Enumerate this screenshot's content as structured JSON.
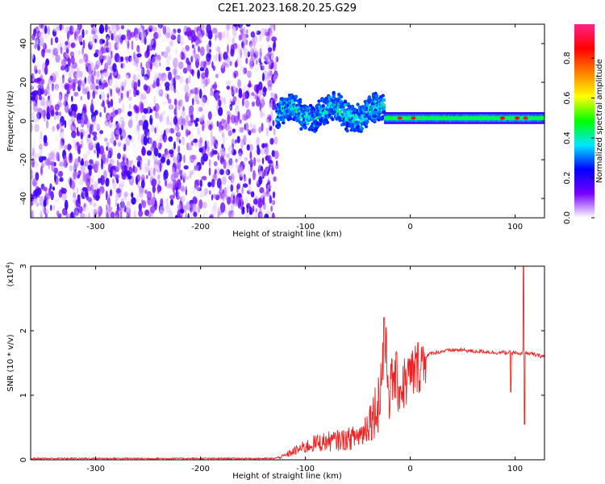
{
  "title": "C2E1.2023.168.20.25.G29",
  "chart_data": [
    {
      "type": "heatmap",
      "xlabel": "Height of straight line (km)",
      "ylabel": "Frequency (Hz)",
      "xlim": [
        -362,
        128
      ],
      "ylim": [
        -50,
        50
      ],
      "x_ticks": [
        -300,
        -200,
        -100,
        0,
        100
      ],
      "x_tick_labels": [
        "-300",
        "-200",
        "-100",
        "0",
        "100"
      ],
      "y_ticks": [
        -40,
        -20,
        0,
        20,
        40
      ],
      "y_tick_labels": [
        "-40",
        "-20",
        "0",
        "20",
        "40"
      ],
      "colorbar": {
        "label": "Normalized spectral amplitude",
        "range": [
          0,
          0.97
        ],
        "ticks": [
          0.0,
          0.2,
          0.4,
          0.6,
          0.8
        ],
        "tick_labels": [
          "0.0",
          "0.2",
          "0.4",
          "0.6",
          "0.8"
        ],
        "colors": [
          "#ffffff",
          "#7700ff",
          "#0000ff",
          "#00e5ff",
          "#00ff00",
          "#ffff00",
          "#ff7f00",
          "#ff0000",
          "#ff2288"
        ]
      },
      "regions": [
        {
          "description": "broadband low-amplitude noise",
          "x_range": [
            -362,
            -127
          ],
          "freq_range": [
            -50,
            50
          ],
          "amplitude": [
            0.0,
            0.2
          ]
        },
        {
          "description": "carrier band, noisy",
          "x_range": [
            -127,
            -25
          ],
          "freq_center": 4,
          "freq_halfwidth": 6,
          "amplitude": [
            0.25,
            0.45
          ]
        },
        {
          "description": "stable carrier",
          "x_range": [
            -25,
            128
          ],
          "freq_center": 1.5,
          "freq_halfwidth": 2.5,
          "amplitude": [
            0.4,
            0.97
          ]
        }
      ],
      "peaks": [
        {
          "x": -10,
          "freq": 1.5,
          "value": 0.9
        },
        {
          "x": 3,
          "freq": 1.5,
          "value": 0.9
        },
        {
          "x": 88,
          "freq": 1.5,
          "value": 0.85
        },
        {
          "x": 102,
          "freq": 1.5,
          "value": 0.85
        },
        {
          "x": 110,
          "freq": 1.5,
          "value": 0.9
        }
      ]
    },
    {
      "type": "line",
      "xlabel": "Height of straight line (km)",
      "ylabel": "SNR (10 * v/v)",
      "y_scale_label": "(x10",
      "y_scale_exponent": "4",
      "xlim": [
        -362,
        128
      ],
      "ylim": [
        0,
        3
      ],
      "x_ticks": [
        -300,
        -200,
        -100,
        0,
        100
      ],
      "x_tick_labels": [
        "-300",
        "-200",
        "-100",
        "0",
        "100"
      ],
      "y_ticks": [
        0,
        1,
        2,
        3
      ],
      "y_tick_labels": [
        "0",
        "1",
        "2",
        "3"
      ],
      "series": [
        {
          "color": "#ee2222",
          "x": [
            -362,
            -300,
            -200,
            -130,
            -120,
            -110,
            -100,
            -90,
            -80,
            -70,
            -60,
            -55,
            -50,
            -45,
            -40,
            -35,
            -30,
            -27,
            -25,
            -23,
            -20,
            -15,
            -10,
            -5,
            0,
            5,
            10,
            15,
            20,
            30,
            40,
            50,
            60,
            70,
            80,
            90,
            100,
            105,
            108,
            110,
            115,
            120,
            128
          ],
          "values": [
            0.02,
            0.02,
            0.02,
            0.02,
            0.06,
            0.14,
            0.2,
            0.26,
            0.28,
            0.3,
            0.32,
            0.34,
            0.38,
            0.42,
            0.6,
            0.7,
            0.95,
            1.3,
            1.9,
            1.6,
            1.05,
            1.3,
            1.1,
            1.2,
            1.3,
            1.4,
            1.5,
            1.6,
            1.65,
            1.68,
            1.7,
            1.7,
            1.68,
            1.68,
            1.66,
            1.66,
            1.66,
            1.62,
            1.7,
            1.66,
            1.64,
            1.62,
            1.6
          ]
        }
      ],
      "annotations": [
        {
          "x": -25,
          "value": 2.2,
          "note": "spike"
        },
        {
          "x": 96,
          "value": 1.05,
          "note": "dip"
        },
        {
          "x": 108,
          "value": 3.0,
          "note": "spike"
        },
        {
          "x": 109,
          "value": 0.55,
          "note": "dip"
        }
      ]
    }
  ]
}
